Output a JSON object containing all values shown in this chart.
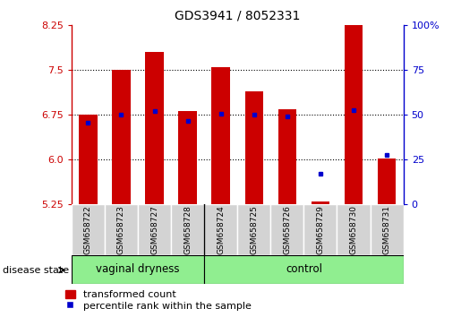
{
  "title": "GDS3941 / 8052331",
  "samples": [
    "GSM658722",
    "GSM658723",
    "GSM658727",
    "GSM658728",
    "GSM658724",
    "GSM658725",
    "GSM658726",
    "GSM658729",
    "GSM658730",
    "GSM658731"
  ],
  "bar_values": [
    6.75,
    7.5,
    7.8,
    6.82,
    7.55,
    7.15,
    6.85,
    5.3,
    8.55,
    6.02
  ],
  "blue_values": [
    6.62,
    6.76,
    6.82,
    6.65,
    6.77,
    6.76,
    6.72,
    5.76,
    6.83,
    6.08
  ],
  "ymin": 5.25,
  "ymax": 8.25,
  "yticks": [
    5.25,
    6.0,
    6.75,
    7.5,
    8.25
  ],
  "right_yticks": [
    0,
    25,
    50,
    75,
    100
  ],
  "bar_color": "#cc0000",
  "blue_color": "#0000cc",
  "bar_width": 0.55,
  "legend_labels": [
    "transformed count",
    "percentile rank within the sample"
  ],
  "disease_state_label": "disease state",
  "group_boundary": 4,
  "group_names": [
    "vaginal dryness",
    "control"
  ],
  "group_color": "#90ee90"
}
